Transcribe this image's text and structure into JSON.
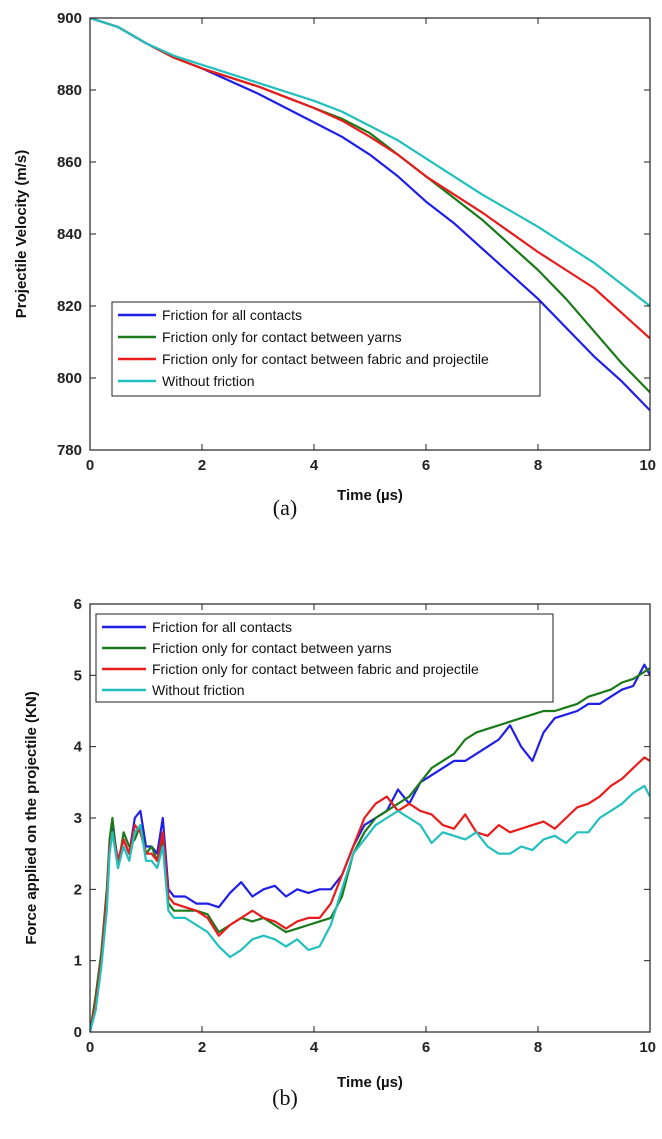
{
  "chart_data": [
    {
      "type": "line",
      "caption": "(a)",
      "xlabel": "Time (µs)",
      "ylabel": "Projectile Velocity (m/s)",
      "xlim": [
        0,
        10
      ],
      "ylim": [
        780,
        900
      ],
      "xticks": [
        0,
        2,
        4,
        6,
        8,
        10
      ],
      "yticks": [
        780,
        800,
        820,
        840,
        860,
        880,
        900
      ],
      "grid": false,
      "legend_position": "bottom-left",
      "series": [
        {
          "name": "Friction for all contacts",
          "color": "#1f1fe6",
          "x": [
            0,
            0.5,
            1,
            1.5,
            2,
            2.5,
            3,
            3.5,
            4,
            4.5,
            5,
            5.5,
            6,
            6.5,
            7,
            7.5,
            8,
            8.5,
            9,
            9.5,
            10
          ],
          "y": [
            900,
            897.5,
            893,
            889,
            886,
            882.5,
            879,
            875,
            871,
            867,
            862,
            856,
            849,
            843,
            836,
            829,
            822,
            814,
            806,
            799,
            791
          ]
        },
        {
          "name": "Friction only for contact between yarns",
          "color": "#1a7a1a",
          "x": [
            0,
            0.5,
            1,
            1.5,
            2,
            2.5,
            3,
            3.5,
            4,
            4.5,
            5,
            5.5,
            6,
            6.5,
            7,
            7.5,
            8,
            8.5,
            9,
            9.5,
            10
          ],
          "y": [
            900,
            897.5,
            893,
            889,
            886,
            883.5,
            881,
            878,
            875,
            872,
            868,
            862,
            856,
            850,
            844,
            837,
            830,
            822,
            813,
            804,
            796
          ]
        },
        {
          "name": "Friction only for contact between fabric and projectile",
          "color": "#e81c1c",
          "x": [
            0,
            0.5,
            1,
            1.5,
            2,
            2.5,
            3,
            3.5,
            4,
            4.5,
            5,
            5.5,
            6,
            6.5,
            7,
            7.5,
            8,
            8.5,
            9,
            9.5,
            10
          ],
          "y": [
            900,
            897.5,
            893,
            889,
            886,
            883.5,
            881,
            878,
            875,
            871.5,
            867,
            862,
            856,
            851,
            846,
            840.5,
            835,
            830,
            825,
            818,
            811
          ]
        },
        {
          "name": "Without friction",
          "color": "#22bfbf",
          "x": [
            0,
            0.5,
            1,
            1.5,
            2,
            2.5,
            3,
            3.5,
            4,
            4.5,
            5,
            5.5,
            6,
            6.5,
            7,
            7.5,
            8,
            8.5,
            9,
            9.5,
            10
          ],
          "y": [
            900,
            897.5,
            893,
            889.5,
            887,
            884.5,
            882,
            879.5,
            877,
            874,
            870,
            866,
            861,
            856,
            851,
            846.5,
            842,
            837,
            832,
            826,
            820
          ]
        }
      ]
    },
    {
      "type": "line",
      "caption": "(b)",
      "xlabel": "Time (µs)",
      "ylabel": "Force applied on the projectile (KN)",
      "xlim": [
        0,
        10
      ],
      "ylim": [
        0,
        6
      ],
      "xticks": [
        0,
        2,
        4,
        6,
        8,
        10
      ],
      "yticks": [
        0,
        1,
        2,
        3,
        4,
        5,
        6
      ],
      "grid": false,
      "legend_position": "top-left",
      "series": [
        {
          "name": "Friction for all contacts",
          "color": "#1f1fe6",
          "x": [
            0,
            0.1,
            0.2,
            0.3,
            0.35,
            0.4,
            0.5,
            0.6,
            0.7,
            0.8,
            0.9,
            1.0,
            1.1,
            1.2,
            1.3,
            1.4,
            1.5,
            1.7,
            1.9,
            2.1,
            2.3,
            2.5,
            2.7,
            2.9,
            3.1,
            3.3,
            3.5,
            3.7,
            3.9,
            4.1,
            4.3,
            4.5,
            4.7,
            4.9,
            5.1,
            5.3,
            5.5,
            5.7,
            5.9,
            6.1,
            6.3,
            6.5,
            6.7,
            6.9,
            7.1,
            7.3,
            7.5,
            7.7,
            7.9,
            8.1,
            8.3,
            8.5,
            8.7,
            8.9,
            9.1,
            9.3,
            9.5,
            9.7,
            9.9,
            10
          ],
          "y": [
            0,
            0.4,
            1.0,
            1.8,
            2.6,
            2.9,
            2.4,
            2.7,
            2.5,
            3.0,
            3.1,
            2.6,
            2.6,
            2.5,
            3.0,
            2.0,
            1.9,
            1.9,
            1.8,
            1.8,
            1.75,
            1.95,
            2.1,
            1.9,
            2.0,
            2.05,
            1.9,
            2.0,
            1.95,
            2.0,
            2.0,
            2.2,
            2.6,
            2.9,
            3.0,
            3.1,
            3.4,
            3.2,
            3.5,
            3.6,
            3.7,
            3.8,
            3.8,
            3.9,
            4.0,
            4.1,
            4.3,
            4.0,
            3.8,
            4.2,
            4.4,
            4.45,
            4.5,
            4.6,
            4.6,
            4.7,
            4.8,
            4.85,
            5.15,
            5.0
          ]
        },
        {
          "name": "Friction only for contact between yarns",
          "color": "#1a7a1a",
          "x": [
            0,
            0.1,
            0.2,
            0.3,
            0.35,
            0.4,
            0.5,
            0.6,
            0.7,
            0.8,
            0.9,
            1.0,
            1.1,
            1.2,
            1.3,
            1.4,
            1.5,
            1.7,
            1.9,
            2.1,
            2.3,
            2.5,
            2.7,
            2.9,
            3.1,
            3.3,
            3.5,
            3.7,
            3.9,
            4.1,
            4.3,
            4.5,
            4.7,
            4.9,
            5.1,
            5.3,
            5.5,
            5.7,
            5.9,
            6.1,
            6.3,
            6.5,
            6.7,
            6.9,
            7.1,
            7.3,
            7.5,
            7.7,
            7.9,
            8.1,
            8.3,
            8.5,
            8.7,
            8.9,
            9.1,
            9.3,
            9.5,
            9.7,
            9.9,
            10
          ],
          "y": [
            0,
            0.5,
            1.1,
            2.0,
            2.7,
            3.0,
            2.3,
            2.8,
            2.6,
            2.7,
            2.9,
            2.5,
            2.6,
            2.4,
            2.7,
            1.8,
            1.7,
            1.7,
            1.7,
            1.65,
            1.4,
            1.5,
            1.6,
            1.55,
            1.6,
            1.5,
            1.4,
            1.45,
            1.5,
            1.55,
            1.6,
            1.9,
            2.5,
            2.8,
            3.0,
            3.1,
            3.2,
            3.3,
            3.5,
            3.7,
            3.8,
            3.9,
            4.1,
            4.2,
            4.25,
            4.3,
            4.35,
            4.4,
            4.45,
            4.5,
            4.5,
            4.55,
            4.6,
            4.7,
            4.75,
            4.8,
            4.9,
            4.95,
            5.05,
            5.1
          ]
        },
        {
          "name": "Friction only for contact between fabric and projectile",
          "color": "#e81c1c",
          "x": [
            0,
            0.1,
            0.2,
            0.3,
            0.35,
            0.4,
            0.5,
            0.6,
            0.7,
            0.8,
            0.9,
            1.0,
            1.1,
            1.2,
            1.3,
            1.4,
            1.5,
            1.7,
            1.9,
            2.1,
            2.3,
            2.5,
            2.7,
            2.9,
            3.1,
            3.3,
            3.5,
            3.7,
            3.9,
            4.1,
            4.3,
            4.5,
            4.7,
            4.9,
            5.1,
            5.3,
            5.5,
            5.7,
            5.9,
            6.1,
            6.3,
            6.5,
            6.7,
            6.9,
            7.1,
            7.3,
            7.5,
            7.7,
            7.9,
            8.1,
            8.3,
            8.5,
            8.7,
            8.9,
            9.1,
            9.3,
            9.5,
            9.7,
            9.9,
            10
          ],
          "y": [
            0,
            0.4,
            1.0,
            1.9,
            2.6,
            2.8,
            2.4,
            2.7,
            2.5,
            2.9,
            2.8,
            2.5,
            2.5,
            2.4,
            2.8,
            1.9,
            1.8,
            1.75,
            1.7,
            1.6,
            1.35,
            1.5,
            1.6,
            1.7,
            1.6,
            1.55,
            1.45,
            1.55,
            1.6,
            1.6,
            1.8,
            2.2,
            2.6,
            3.0,
            3.2,
            3.3,
            3.1,
            3.2,
            3.1,
            3.05,
            2.9,
            2.85,
            3.05,
            2.8,
            2.75,
            2.9,
            2.8,
            2.85,
            2.9,
            2.95,
            2.85,
            3.0,
            3.15,
            3.2,
            3.3,
            3.45,
            3.55,
            3.7,
            3.85,
            3.8
          ]
        },
        {
          "name": "Without friction",
          "color": "#22bfbf",
          "x": [
            0,
            0.1,
            0.2,
            0.3,
            0.35,
            0.4,
            0.5,
            0.6,
            0.7,
            0.8,
            0.9,
            1.0,
            1.1,
            1.2,
            1.3,
            1.4,
            1.5,
            1.7,
            1.9,
            2.1,
            2.3,
            2.5,
            2.7,
            2.9,
            3.1,
            3.3,
            3.5,
            3.7,
            3.9,
            4.1,
            4.3,
            4.5,
            4.7,
            4.9,
            5.1,
            5.3,
            5.5,
            5.7,
            5.9,
            6.1,
            6.3,
            6.5,
            6.7,
            6.9,
            7.1,
            7.3,
            7.5,
            7.7,
            7.9,
            8.1,
            8.3,
            8.5,
            8.7,
            8.9,
            9.1,
            9.3,
            9.5,
            9.7,
            9.9,
            10
          ],
          "y": [
            0,
            0.3,
            0.9,
            1.7,
            2.5,
            2.8,
            2.3,
            2.6,
            2.4,
            2.8,
            2.9,
            2.4,
            2.4,
            2.3,
            2.6,
            1.7,
            1.6,
            1.6,
            1.5,
            1.4,
            1.2,
            1.05,
            1.15,
            1.3,
            1.35,
            1.3,
            1.2,
            1.3,
            1.15,
            1.2,
            1.5,
            2.0,
            2.5,
            2.7,
            2.9,
            3.0,
            3.1,
            3.0,
            2.9,
            2.65,
            2.8,
            2.75,
            2.7,
            2.8,
            2.6,
            2.5,
            2.5,
            2.6,
            2.55,
            2.7,
            2.75,
            2.65,
            2.8,
            2.8,
            3.0,
            3.1,
            3.2,
            3.35,
            3.45,
            3.3
          ]
        }
      ]
    }
  ]
}
